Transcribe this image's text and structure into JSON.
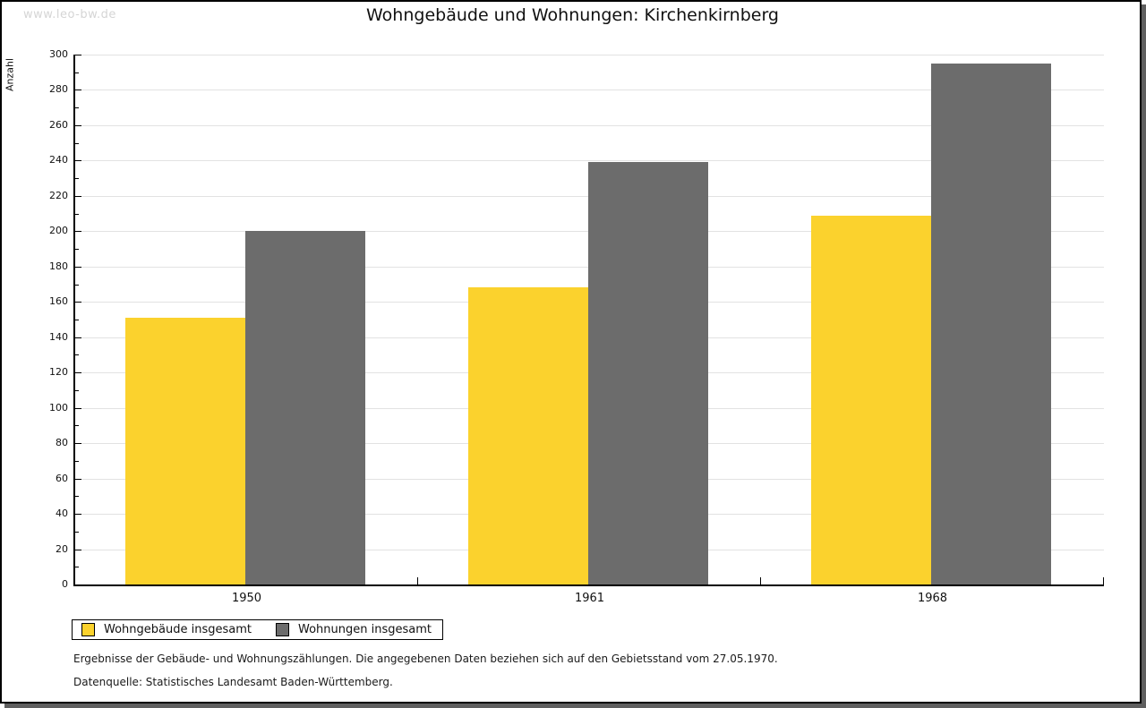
{
  "watermark": "www.leo-bw.de",
  "title": "Wohngebäude und Wohnungen: Kirchenkirnberg",
  "chart_data": {
    "type": "bar",
    "title": "Wohngebäude und Wohnungen: Kirchenkirnberg",
    "xlabel": "",
    "ylabel": "Anzahl",
    "categories": [
      "1950",
      "1961",
      "1968"
    ],
    "series": [
      {
        "name": "Wohngebäude insgesamt",
        "color": "#fbd22d",
        "values": [
          151,
          168,
          209
        ]
      },
      {
        "name": "Wohnungen insgesamt",
        "color": "#6c6c6c",
        "values": [
          200,
          239,
          295
        ]
      }
    ],
    "ylim": [
      0,
      300
    ],
    "ytick_major_step": 20,
    "ytick_minor_step": 10,
    "yticks": [
      0,
      20,
      40,
      60,
      80,
      100,
      120,
      140,
      160,
      180,
      200,
      220,
      240,
      260,
      280,
      300
    ],
    "grid": true,
    "gridline_color": "#e2e2e2",
    "legend_position": "bottom"
  },
  "legend": {
    "items": [
      {
        "label": "Wohngebäude insgesamt",
        "color": "#fbd22d"
      },
      {
        "label": "Wohnungen insgesamt",
        "color": "#6c6c6c"
      }
    ]
  },
  "footnotes": {
    "line1": "Ergebnisse der Gebäude- und Wohnungszählungen. Die angegebenen Daten beziehen sich auf den Gebietsstand vom 27.05.1970.",
    "line2": "Datenquelle: Statistisches Landesamt Baden-Württemberg."
  },
  "colors": {
    "series1": "#fbd22d",
    "series2": "#6c6c6c",
    "axis": "#000000",
    "gridline": "#e2e2e2",
    "watermark_text": "#d5d5d5",
    "frame_border": "#000000",
    "frame_shadow": "#5f5f5f",
    "background": "#ffffff"
  }
}
